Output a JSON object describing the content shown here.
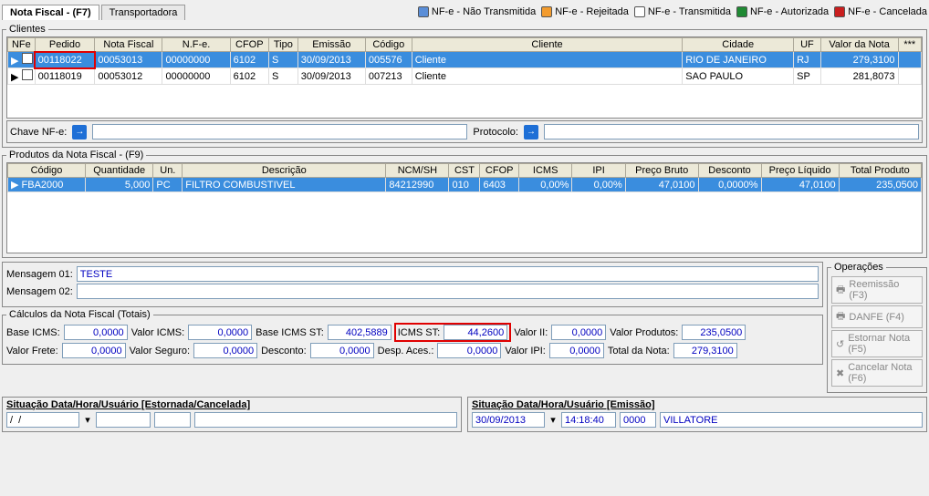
{
  "tabs": {
    "nota": "Nota Fiscal - (F7)",
    "transp": "Transportadora"
  },
  "legend": [
    {
      "label": "NF-e - Não Transmitida",
      "color": "#5a8ed8"
    },
    {
      "label": "NF-e - Rejeitada",
      "color": "#f29b2e"
    },
    {
      "label": "NF-e - Transmitida",
      "color": "#ffffff"
    },
    {
      "label": "NF-e - Autorizada",
      "color": "#1f8a33"
    },
    {
      "label": "NF-e - Cancelada",
      "color": "#c91e1e"
    }
  ],
  "clientes": {
    "title": "Clientes",
    "cols": [
      "NFe",
      "Pedido",
      "Nota Fiscal",
      "N.F-e.",
      "CFOP",
      "Tipo",
      "Emissão",
      "Código",
      "Cliente",
      "Cidade",
      "UF",
      "Valor da Nota",
      "***"
    ],
    "widths": [
      28,
      62,
      70,
      70,
      40,
      30,
      70,
      48,
      280,
      115,
      28,
      80,
      24
    ],
    "rows": [
      {
        "sel": true,
        "cells": [
          "",
          "00118022",
          "00053013",
          "00000000",
          "6102",
          "S",
          "30/09/2013",
          "005576",
          "Cliente",
          "RIO DE JANEIRO",
          "RJ",
          "279,3100",
          ""
        ]
      },
      {
        "sel": false,
        "cells": [
          "",
          "00118019",
          "00053012",
          "00000000",
          "6102",
          "S",
          "30/09/2013",
          "007213",
          "Cliente",
          "SAO PAULO",
          "SP",
          "281,8073",
          ""
        ]
      }
    ],
    "alignRight": [
      11
    ]
  },
  "chave": {
    "chaveLabel": "Chave NF-e:",
    "chaveVal": "",
    "protoLabel": "Protocolo:",
    "protoVal": ""
  },
  "produtos": {
    "title": "Produtos da Nota  Fiscal - (F9)",
    "cols": [
      "Código",
      "Quantidade",
      "Un.",
      "Descrição",
      "NCM/SH",
      "CST",
      "CFOP",
      "ICMS",
      "IPI",
      "Preço Bruto",
      "Desconto",
      "Preço Líquido",
      "Total Produto"
    ],
    "widths": [
      80,
      70,
      30,
      210,
      65,
      32,
      40,
      55,
      55,
      75,
      65,
      80,
      85
    ],
    "alignRight": [
      1,
      7,
      8,
      9,
      10,
      11,
      12
    ],
    "rows": [
      {
        "sel": true,
        "cells": [
          "FBA2000",
          "5,000",
          "PC",
          "FILTRO COMBUSTIVEL",
          "84212990",
          "010",
          "6403",
          "0,00%",
          "0,00%",
          "47,0100",
          "0,0000%",
          "47,0100",
          "235,0500"
        ]
      }
    ]
  },
  "mensagens": {
    "m1label": "Mensagem 01:",
    "m1": "TESTE",
    "m2label": "Mensagem 02:",
    "m2": ""
  },
  "totais": {
    "title": "Cálculos da Nota Fiscal (Totais)",
    "baseicms_l": "Base ICMS:",
    "baseicms": "0,0000",
    "valoricms_l": "Valor ICMS:",
    "valoricms": "0,0000",
    "baseicmsst_l": "Base ICMS ST:",
    "baseicmsst": "402,5889",
    "icmsst_l": "ICMS ST:",
    "icmsst": "44,2600",
    "valorii_l": "Valor II:",
    "valorii": "0,0000",
    "valorprod_l": "Valor Produtos:",
    "valorprod": "235,0500",
    "valorfrete_l": "Valor Frete:",
    "valorfrete": "0,0000",
    "valorseguro_l": "Valor Seguro:",
    "valorseguro": "0,0000",
    "desconto_l": "Desconto:",
    "desconto": "0,0000",
    "despaces_l": "Desp. Aces.:",
    "despaces": "0,0000",
    "valoripi_l": "Valor IPI:",
    "valoripi": "0,0000",
    "totalnota_l": "Total da Nota:",
    "totalnota": "279,3100"
  },
  "ops": {
    "title": "Operações",
    "reemissao": "Reemissão (F3)",
    "danfe": "DANFE (F4)",
    "estornar": "Estornar Nota (F5)",
    "cancelar": "Cancelar Nota (F6)"
  },
  "situ_est": {
    "title": "Situação  Data/Hora/Usuário [Estornada/Cancelada]",
    "date": "/  /",
    "time": "",
    "code": "",
    "user": ""
  },
  "situ_emi": {
    "title": "Situação  Data/Hora/Usuário [Emissão]",
    "date": "30/09/2013",
    "time": "14:18:40",
    "code": "0000",
    "user": "VILLATORE"
  }
}
